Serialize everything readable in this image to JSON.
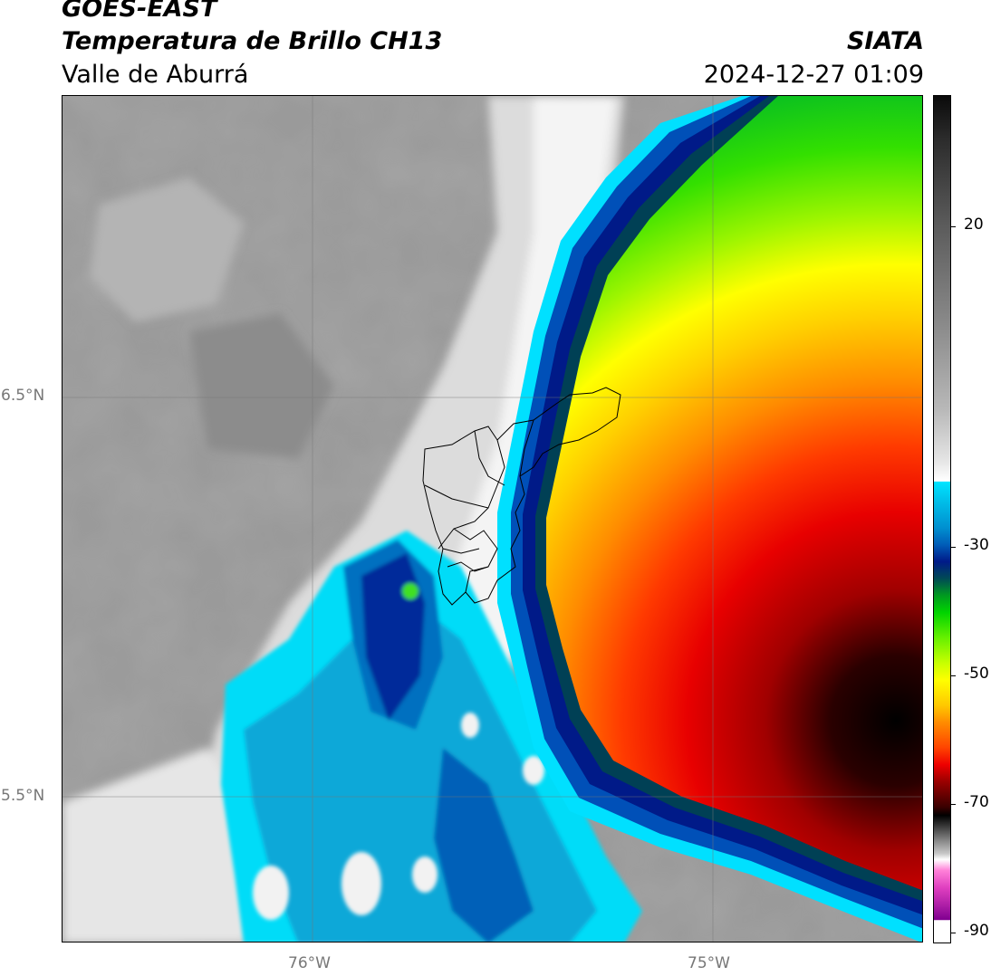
{
  "header": {
    "satellite": "GOES-EAST",
    "product": "Temperatura de Brillo CH13",
    "region": "Valle de Aburrá",
    "organization": "SIATA",
    "timestamp": "2024-12-27 01:09"
  },
  "map": {
    "lat_labels": [
      "6.5°N",
      "5.5°N"
    ],
    "lon_labels": [
      "76°W",
      "75°W"
    ]
  },
  "colorbar": {
    "labels": [
      "20",
      "-30",
      "-50",
      "-70",
      "-90"
    ]
  },
  "colors": {
    "cold_black": "#000000",
    "red": "#e80000",
    "orange": "#ff8c00",
    "yellow": "#ffff00",
    "green": "#33e000",
    "navy": "#001a88",
    "cyan": "#00e0ff",
    "warm_gray": "#9a9a9a"
  }
}
